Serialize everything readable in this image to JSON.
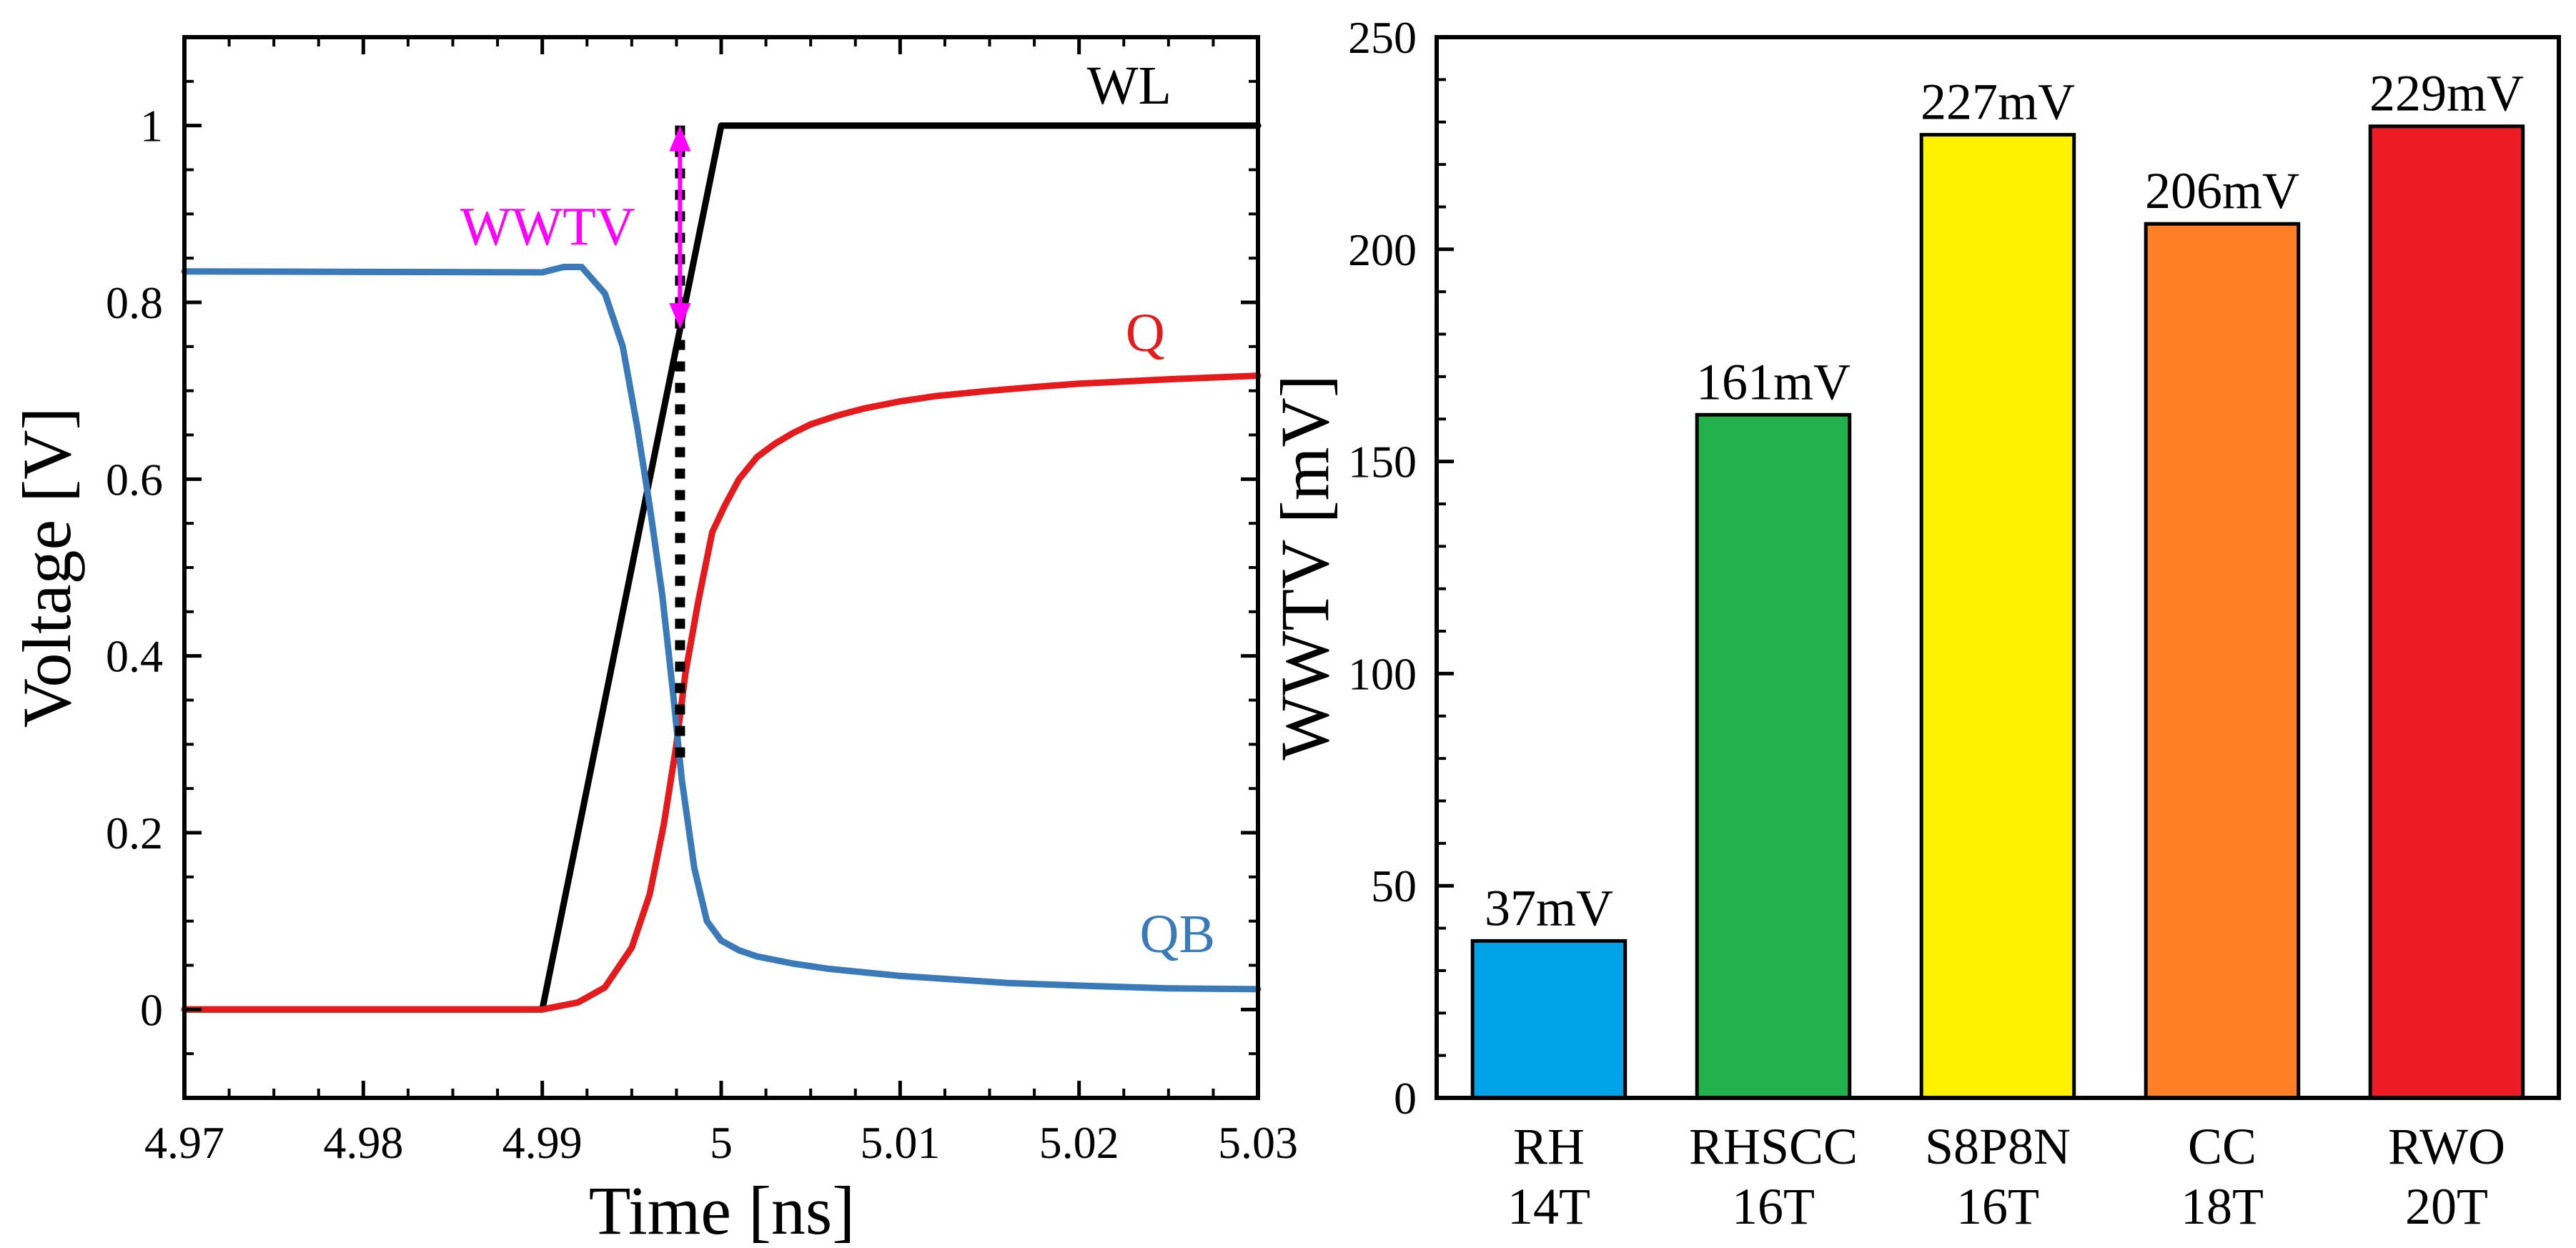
{
  "chart_data": [
    {
      "type": "line",
      "title": "",
      "xlabel": "Time [ns]",
      "ylabel": "Voltage [V]",
      "xlim": [
        4.97,
        5.03
      ],
      "ylim": [
        -0.1,
        1.1
      ],
      "x_ticks": [
        4.97,
        4.98,
        4.99,
        5,
        5.01,
        5.02,
        5.03
      ],
      "x_tick_labels": [
        "4.97",
        "4.98",
        "4.99",
        "5",
        "5.01",
        "5.02",
        "5.03"
      ],
      "y_ticks": [
        0,
        0.2,
        0.4,
        0.6,
        0.8,
        1
      ],
      "y_tick_labels": [
        "0",
        "0.2",
        "0.4",
        "0.6",
        "0.8",
        "1"
      ],
      "grid": false,
      "series": [
        {
          "name": "WL",
          "color": "#000000",
          "points": [
            [
              4.97,
              0
            ],
            [
              4.99,
              0
            ],
            [
              5.0,
              1.0
            ],
            [
              5.03,
              1.0
            ]
          ]
        },
        {
          "name": "Q",
          "color": "#e41a1c",
          "points": [
            [
              4.97,
              0
            ],
            [
              4.99,
              0
            ],
            [
              4.992,
              0.008
            ],
            [
              4.9935,
              0.025
            ],
            [
              4.995,
              0.07
            ],
            [
              4.996,
              0.13
            ],
            [
              4.9968,
              0.21
            ],
            [
              4.9975,
              0.3
            ],
            [
              4.998,
              0.38
            ],
            [
              4.9987,
              0.46
            ],
            [
              4.9995,
              0.54
            ],
            [
              5.0002,
              0.57
            ],
            [
              5.001,
              0.6
            ],
            [
              5.002,
              0.625
            ],
            [
              5.003,
              0.64
            ],
            [
              5.004,
              0.652
            ],
            [
              5.005,
              0.662
            ],
            [
              5.0065,
              0.672
            ],
            [
              5.008,
              0.68
            ],
            [
              5.01,
              0.688
            ],
            [
              5.012,
              0.694
            ],
            [
              5.015,
              0.7
            ],
            [
              5.018,
              0.705
            ],
            [
              5.02,
              0.708
            ],
            [
              5.025,
              0.713
            ],
            [
              5.03,
              0.717
            ]
          ]
        },
        {
          "name": "QB",
          "color": "#3a7ab8",
          "points": [
            [
              4.97,
              0.835
            ],
            [
              4.99,
              0.834
            ],
            [
              4.9912,
              0.84
            ],
            [
              4.9922,
              0.84
            ],
            [
              4.9935,
              0.81
            ],
            [
              4.9945,
              0.75
            ],
            [
              4.9953,
              0.66
            ],
            [
              4.996,
              0.57
            ],
            [
              4.9967,
              0.47
            ],
            [
              4.9973,
              0.36
            ],
            [
              4.9978,
              0.26
            ],
            [
              4.9985,
              0.16
            ],
            [
              4.9992,
              0.1
            ],
            [
              5.0,
              0.078
            ],
            [
              5.001,
              0.067
            ],
            [
              5.002,
              0.06
            ],
            [
              5.004,
              0.052
            ],
            [
              5.006,
              0.046
            ],
            [
              5.008,
              0.042
            ],
            [
              5.01,
              0.038
            ],
            [
              5.013,
              0.034
            ],
            [
              5.016,
              0.03
            ],
            [
              5.02,
              0.027
            ],
            [
              5.025,
              0.024
            ],
            [
              5.03,
              0.023
            ]
          ]
        }
      ],
      "series_label_colors": {
        "WL": "#000000",
        "Q": "#e41a1c",
        "QB": "#3a7ab8"
      },
      "annotations": [
        {
          "type": "dotted-vline",
          "x": 4.9977,
          "y_from": 1.0,
          "y_to": 0.28,
          "color": "#000000"
        },
        {
          "type": "double-arrow",
          "label": "WWTV",
          "x": 4.9977,
          "y_from": 1.0,
          "y_to": 0.77,
          "color": "#ff00ff"
        }
      ]
    },
    {
      "type": "bar",
      "title": "",
      "xlabel": "",
      "ylabel": "WWTV [mV]",
      "ylim": [
        0,
        250
      ],
      "y_ticks": [
        0,
        50,
        100,
        150,
        200,
        250
      ],
      "y_tick_labels": [
        "0",
        "50",
        "100",
        "150",
        "200",
        "250"
      ],
      "grid": false,
      "categories": [
        {
          "line1": "RH",
          "line2": "14T"
        },
        {
          "line1": "RHSCC",
          "line2": "16T"
        },
        {
          "line1": "S8P8N",
          "line2": "16T"
        },
        {
          "line1": "CC",
          "line2": "18T"
        },
        {
          "line1": "RWO",
          "line2": "20T"
        }
      ],
      "values": [
        37,
        161,
        227,
        206,
        229
      ],
      "value_labels": [
        "37mV",
        "161mV",
        "227mV",
        "206mV",
        "229mV"
      ],
      "colors": [
        "#00a2e8",
        "#22b14c",
        "#fff200",
        "#ff7f27",
        "#ed1c24"
      ]
    }
  ]
}
